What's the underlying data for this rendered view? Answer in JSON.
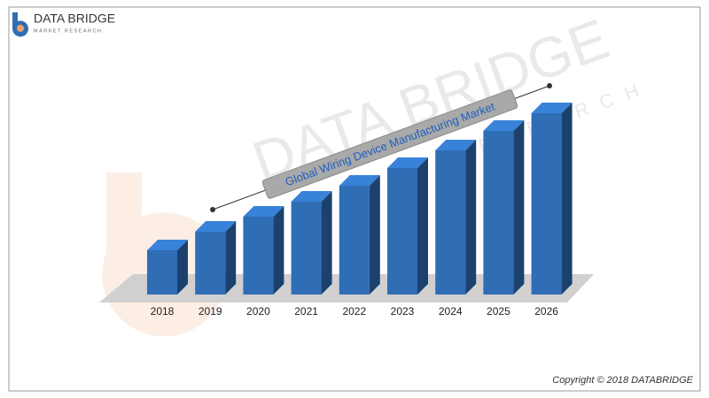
{
  "logo": {
    "name": "DATA BRIDGE",
    "tagline": "MARKET RESEARCH"
  },
  "chart_data": {
    "type": "bar",
    "title": "Global Wiring Device Manufacturing Market",
    "categories": [
      "2018",
      "2019",
      "2020",
      "2021",
      "2022",
      "2023",
      "2024",
      "2025",
      "2026"
    ],
    "values": [
      50,
      71,
      88,
      105,
      123,
      143,
      163,
      185,
      205
    ],
    "color": "#2f6db5"
  },
  "footer": {
    "copyright": "Copyright © 2018 DATABRIDGE"
  }
}
